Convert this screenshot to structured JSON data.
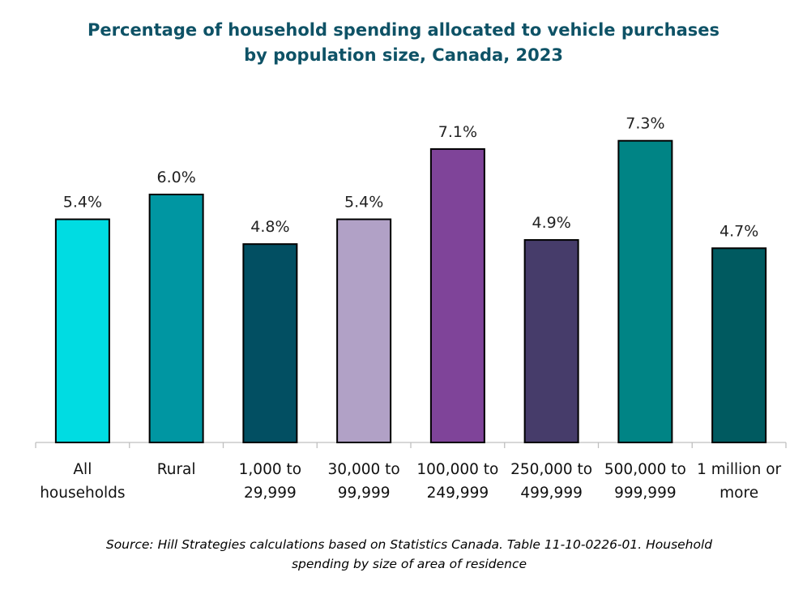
{
  "chart_data": {
    "type": "bar",
    "title": "Percentage of household spending allocated to vehicle purchases by population size, Canada, 2023",
    "title_lines": [
      "Percentage of household spending allocated to vehicle purchases",
      "by population size, Canada, 2023"
    ],
    "categories": [
      [
        "All",
        "households"
      ],
      [
        "Rural"
      ],
      [
        "1,000 to",
        "29,999"
      ],
      [
        "30,000 to",
        "99,999"
      ],
      [
        "100,000 to",
        "249,999"
      ],
      [
        "250,000 to",
        "499,999"
      ],
      [
        "500,000 to",
        "999,999"
      ],
      [
        "1 million or",
        "more"
      ]
    ],
    "values": [
      5.4,
      6.0,
      4.8,
      5.4,
      7.1,
      4.9,
      7.3,
      4.7
    ],
    "data_labels": [
      "5.4%",
      "6.0%",
      "4.8%",
      "5.4%",
      "7.1%",
      "4.9%",
      "7.3%",
      "4.7%"
    ],
    "colors": [
      "#00DCE2",
      "#0096A2",
      "#024F62",
      "#B1A1C6",
      "#7F4499",
      "#463C6A",
      "#008485",
      "#005A60"
    ],
    "xlabel": "",
    "ylabel": "",
    "ylim": [
      0,
      8
    ],
    "y_axis_visible": false,
    "grid": false,
    "legend": "none"
  },
  "source": [
    "Source: Hill Strategies calculations based on Statistics Canada. Table 11-10-0226-01. Household",
    "spending by size of area of residence"
  ]
}
